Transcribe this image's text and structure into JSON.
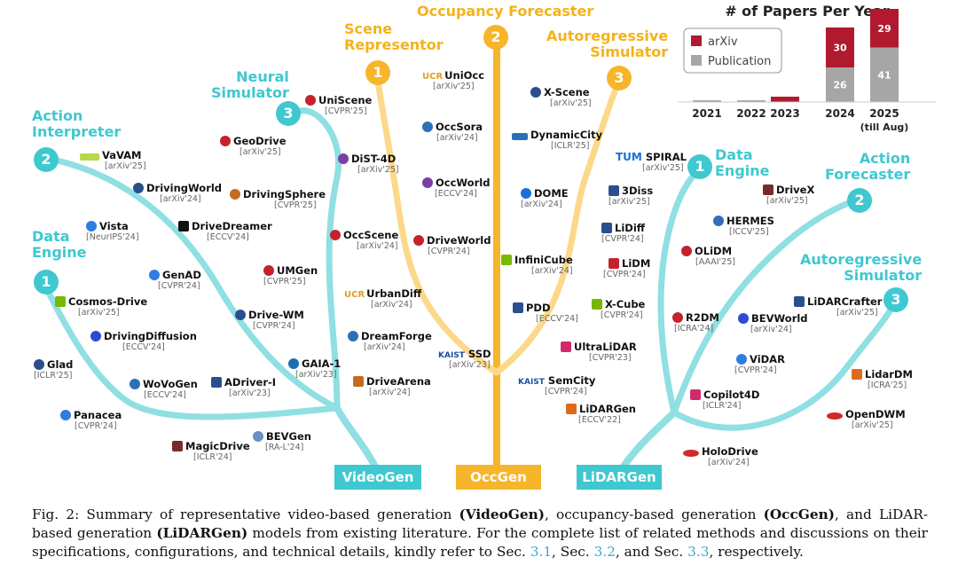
{
  "categories": {
    "videogen_label": "VideoGen",
    "occgen_label": "OccGen",
    "lidargen_label": "LiDARGen",
    "occ_forecaster": "Occupancy Forecaster",
    "scene_representor": "Scene\nRepresentor",
    "autoregressive_sim_occ": "Autoregressive\nSimulator",
    "neural_simulator": "Neural\nSimulator",
    "action_interpreter": "Action\nInterpreter",
    "data_engine_video": "Data\nEngine",
    "data_engine_lidar": "Data\nEngine",
    "action_forecaster": "Action\nForecaster",
    "autoregressive_sim_lidar": "Autoregressive\nSimulator",
    "num_1a": "1",
    "num_2a": "2",
    "num_3a": "3",
    "num_1b": "1",
    "num_2b": "2",
    "num_3b": "3",
    "num_1c": "1",
    "num_2c": "2",
    "num_3c": "3"
  },
  "videogen_models": [
    {
      "name": "VaVAM",
      "venue": "[arXiv'25]"
    },
    {
      "name": "DrivingWorld",
      "venue": "[arXiv'24]"
    },
    {
      "name": "Vista",
      "venue": "[NeurIPS'24]"
    },
    {
      "name": "DriveDreamer",
      "venue": "[ECCV'24]"
    },
    {
      "name": "GenAD",
      "venue": "[CVPR'24]"
    },
    {
      "name": "Cosmos-Drive",
      "venue": "[arXiv'25]"
    },
    {
      "name": "DrivingDiffusion",
      "venue": "[ECCV'24]"
    },
    {
      "name": "Glad",
      "venue": "[ICLR'25]"
    },
    {
      "name": "WoVoGen",
      "venue": "[ECCV'24]"
    },
    {
      "name": "Panacea",
      "venue": "[CVPR'24]"
    },
    {
      "name": "MagicDrive",
      "venue": "[ICLR'24]"
    },
    {
      "name": "BEVGen",
      "venue": "[RA-L'24]"
    },
    {
      "name": "UniScene",
      "venue": "[CVPR'25]"
    },
    {
      "name": "GeoDrive",
      "venue": "[arXiv'25]"
    },
    {
      "name": "DiST-4D",
      "venue": "[arXiv'25]"
    },
    {
      "name": "DrivingSphere",
      "venue": "[CVPR'25]"
    },
    {
      "name": "OccScene",
      "venue": "[arXiv'24]"
    },
    {
      "name": "UMGen",
      "venue": "[CVPR'25]"
    },
    {
      "name": "UrbanDiff",
      "venue": "[arXiv'24]"
    },
    {
      "name": "Drive-WM",
      "venue": "[CVPR'24]"
    },
    {
      "name": "DreamForge",
      "venue": "[arXiv'24]"
    },
    {
      "name": "GAIA-1",
      "venue": "[arXiv'23]"
    },
    {
      "name": "ADriver-I",
      "venue": "[arXiv'23]"
    },
    {
      "name": "DriveArena",
      "venue": "[arXiv'24]"
    }
  ],
  "occgen_models": [
    {
      "name": "UniOcc",
      "venue": "[arXiv'25]",
      "prefix": "UCR"
    },
    {
      "name": "OccSora",
      "venue": "[arXiv'24]"
    },
    {
      "name": "OccWorld",
      "venue": "[ECCV'24]"
    },
    {
      "name": "DriveWorld",
      "venue": "[CVPR'24]"
    },
    {
      "name": "SSD",
      "venue": "[arXiv'23]",
      "prefix": "KAIST"
    },
    {
      "name": "X-Scene",
      "venue": "[arXiv'25]"
    },
    {
      "name": "DynamicCity",
      "venue": "[ICLR'25]"
    },
    {
      "name": "DOME",
      "venue": "[arXiv'24]"
    },
    {
      "name": "InfiniCube",
      "venue": "[arXiv'24]"
    },
    {
      "name": "PDD",
      "venue": "[ECCV'24]"
    },
    {
      "name": "SemCity",
      "venue": "[CVPR'24]",
      "prefix": "KAIST"
    }
  ],
  "lidargen_models": [
    {
      "name": "SPIRAL",
      "venue": "[arXiv'25]",
      "prefix": "TUM"
    },
    {
      "name": "3Diss",
      "venue": "[arXiv'25]"
    },
    {
      "name": "LiDiff",
      "venue": "[CVPR'24]"
    },
    {
      "name": "LiDM",
      "venue": "[CVPR'24]"
    },
    {
      "name": "X-Cube",
      "venue": "[CVPR'24]"
    },
    {
      "name": "UltraLiDAR",
      "venue": "[CVPR'23]"
    },
    {
      "name": "LiDARGen",
      "venue": "[ECCV'22]"
    },
    {
      "name": "DriveX",
      "venue": "[arXiv'25]"
    },
    {
      "name": "HERMES",
      "venue": "[ICCV'25]"
    },
    {
      "name": "OLiDM",
      "venue": "[AAAI'25]"
    },
    {
      "name": "R2DM",
      "venue": "[ICRA'24]"
    },
    {
      "name": "BEVWorld",
      "venue": "[arXiv'24]"
    },
    {
      "name": "ViDAR",
      "venue": "[CVPR'24]"
    },
    {
      "name": "Copilot4D",
      "venue": "[ICLR'24]"
    },
    {
      "name": "LiDARCrafter",
      "venue": "[arXiv'25]"
    },
    {
      "name": "LidarDM",
      "venue": "[ICRA'25]"
    },
    {
      "name": "OpenDWM",
      "venue": "[arXiv'25]"
    },
    {
      "name": "HoloDrive",
      "venue": "[arXiv'24]"
    }
  ],
  "chart_data": {
    "type": "bar",
    "title": "# of Papers Per Year",
    "categories": [
      "2021",
      "2022",
      "2023",
      "2024",
      "2025"
    ],
    "category_sublabels": [
      "",
      "",
      "",
      "",
      "(till Aug)"
    ],
    "series": [
      {
        "name": "Publication",
        "color": "#a6a6a6",
        "values": [
          0,
          0,
          0,
          26,
          41
        ]
      },
      {
        "name": "arXiv",
        "color": "#b0192e",
        "values": [
          0,
          0,
          4,
          30,
          29
        ]
      }
    ],
    "labeled_values": {
      "2024": {
        "Publication": "26",
        "arXiv": "30"
      },
      "2025": {
        "Publication": "41",
        "arXiv": "29"
      }
    },
    "legend_position": "top-left",
    "legend_labels": [
      "arXiv",
      "Publication"
    ]
  },
  "caption": {
    "fig": "Fig. 2:",
    "t1": " Summary of representative video-based generation ",
    "b1": "(VideoGen)",
    "t2": ", occupancy-based generation ",
    "b2": "(OccGen)",
    "t3": ", and LiDAR-based generation ",
    "b3": "(LiDARGen)",
    "t4": " models from existing literature. For the complete list of related methods and discussions on their specifications, configurations, and technical details, kindly refer to Sec. ",
    "r1": "3.1",
    "t5": ", Sec. ",
    "r2": "3.2",
    "t6": ", and Sec. ",
    "r3": "3.3",
    "t7": ", respectively."
  },
  "colors": {
    "teal": "#8fdfe3",
    "teal_dark": "#3fc8cf",
    "gold": "#f7b52b",
    "gold_light": "#fcd98a",
    "arxiv": "#b0192e",
    "publication": "#a6a6a6"
  }
}
